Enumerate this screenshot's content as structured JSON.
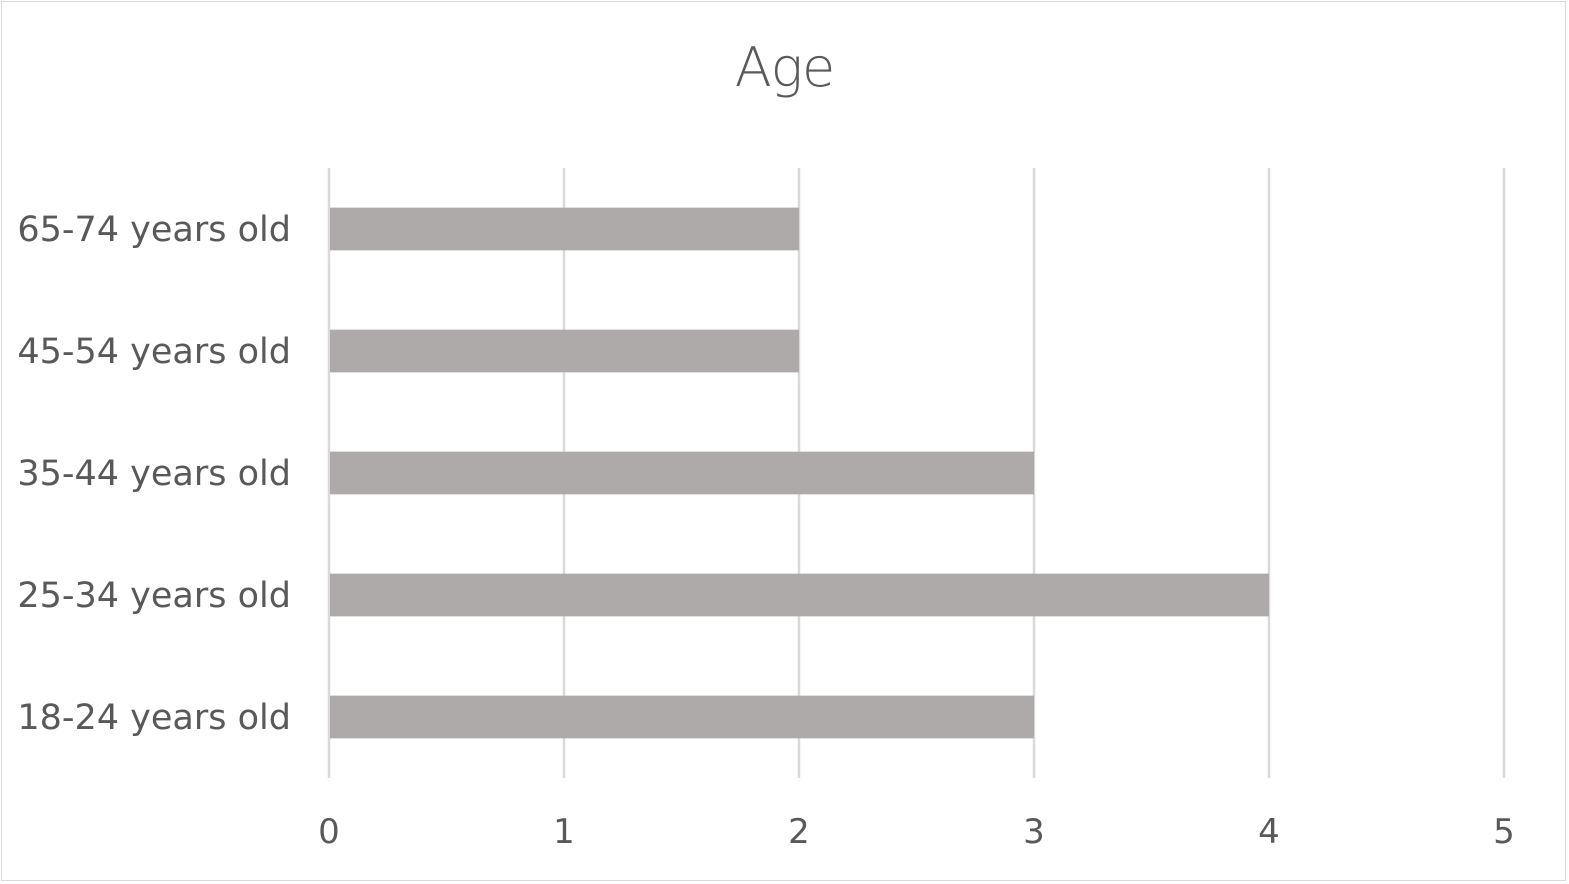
{
  "chart_data": {
    "type": "bar",
    "orientation": "horizontal",
    "title": "Age",
    "categories": [
      "65-74 years old",
      "45-54 years old",
      "35-44 years old",
      "25-34 years old",
      "18-24 years old"
    ],
    "values": [
      2,
      2,
      3,
      4,
      3
    ],
    "xlim": [
      0,
      5
    ],
    "x_ticks": [
      0,
      1,
      2,
      3,
      4,
      5
    ],
    "xlabel": "",
    "ylabel": "",
    "grid": "vertical",
    "legend": "none",
    "bar_color": "#aeaaaa",
    "grid_color": "#d9d9d9",
    "text_color": "#595959"
  }
}
